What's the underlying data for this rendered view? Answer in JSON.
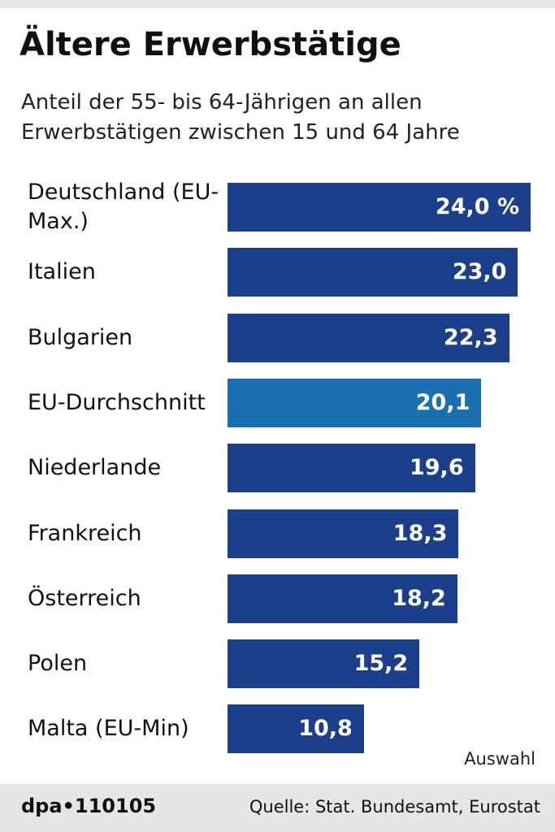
{
  "chart_data": {
    "type": "bar",
    "orientation": "horizontal",
    "title": "Ältere Erwerbstätige",
    "subtitle": "Anteil der 55- bis 64-Jährigen an allen Erwerbstätigen zwischen 15 und 64 Jahre",
    "categories": [
      "Deutschland (EU-Max.)",
      "Italien",
      "Bulgarien",
      "EU-Durchschnitt",
      "Niederlande",
      "Frankreich",
      "Österreich",
      "Polen",
      "Malta (EU-Min)"
    ],
    "values": [
      24.0,
      23.0,
      22.3,
      20.1,
      19.6,
      18.3,
      18.2,
      15.2,
      10.8
    ],
    "value_labels": [
      "24,0 %",
      "23,0",
      "22,3",
      "20,1",
      "19,6",
      "18,3",
      "18,2",
      "15,2",
      "10,8"
    ],
    "colors": [
      "#1c3f8c",
      "#1c3f8c",
      "#1c3f8c",
      "#1a6fb0",
      "#1c3f8c",
      "#1c3f8c",
      "#1c3f8c",
      "#1c3f8c",
      "#1c3f8c"
    ],
    "xlim": [
      0,
      24
    ],
    "note": "Auswahl",
    "credit": "dpa•110105",
    "source": "Quelle: Stat. Bundesamt, Eurostat"
  }
}
